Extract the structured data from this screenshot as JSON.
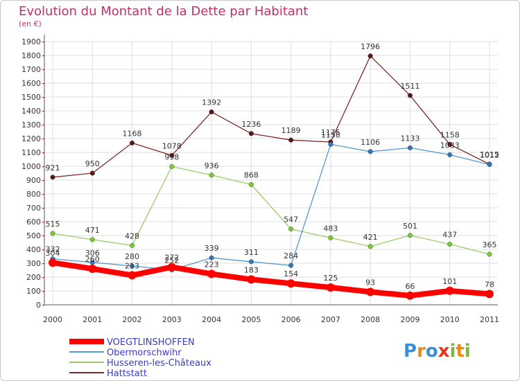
{
  "chart_data": {
    "type": "line",
    "title": "Evolution du Montant de la Dette par Habitant",
    "subtitle": "(en €)",
    "xlabel": "",
    "ylabel": "",
    "ylim": [
      0,
      1900
    ],
    "yticks": [
      0,
      100,
      200,
      300,
      400,
      500,
      600,
      700,
      800,
      900,
      1000,
      1100,
      1200,
      1300,
      1400,
      1500,
      1600,
      1700,
      1800,
      1900
    ],
    "grid": true,
    "categories": [
      "2000",
      "2001",
      "2002",
      "2003",
      "2004",
      "2005",
      "2006",
      "2007",
      "2008",
      "2009",
      "2010",
      "2011"
    ],
    "series": [
      {
        "name": "Hattstatt",
        "color": "#7a2a2a",
        "dot": "#5a1515",
        "values": [
          921,
          950,
          1168,
          1078,
          1392,
          1236,
          1189,
          1175,
          1796,
          1511,
          1158,
          1015
        ]
      },
      {
        "name": "Husseren-les-Châteaux",
        "color": "#99cc66",
        "dot": "#77cc33",
        "values": [
          515,
          471,
          428,
          998,
          936,
          868,
          547,
          483,
          421,
          501,
          437,
          365
        ]
      },
      {
        "name": "Obermorschwihr",
        "color": "#5599cc",
        "dot": "#3377bb",
        "values": [
          332,
          306,
          280,
          252,
          339,
          311,
          284,
          1158,
          1106,
          1133,
          1083,
          1012
        ]
      },
      {
        "name": "VOEGTLINSHOFFEN",
        "color": "#ff0000",
        "dot": "#ff0000",
        "values": [
          304,
          260,
          213,
          272,
          223,
          183,
          154,
          125,
          93,
          66,
          101,
          78
        ]
      }
    ],
    "legend_order": [
      "VOEGTLINSHOFFEN",
      "Obermorschwihr",
      "Husseren-les-Châteaux",
      "Hattstatt"
    ],
    "legend_position": "bottom-left"
  },
  "brand": {
    "text": "Proxiti",
    "letters": [
      "P",
      "r",
      "o",
      "x",
      "i",
      "t",
      "i"
    ],
    "colors": [
      "#3c8fd6",
      "#e88a1a",
      "#3c8fd6",
      "#e8341a",
      "#7ab648",
      "#e88a1a",
      "#7ab648"
    ]
  }
}
